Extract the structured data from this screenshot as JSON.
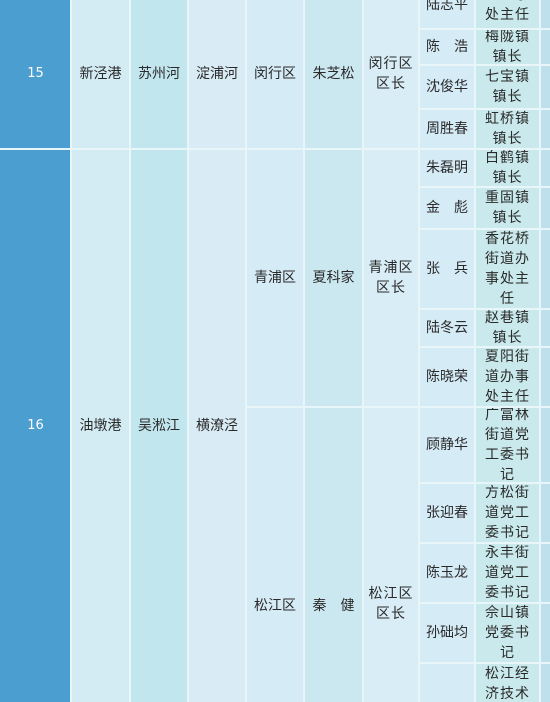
{
  "rows": [
    {
      "no": "15",
      "river1": "新泾港",
      "river2": "苏州河",
      "river3": "淀浦河",
      "district": "闵行区",
      "district_chief": "朱芝松",
      "district_title": "闵行区区长",
      "towns": [
        {
          "name": "陆志平",
          "title": "道办事处主任"
        },
        {
          "name": "陈　浩",
          "title": "梅陇镇镇长"
        },
        {
          "name": "沈俊华",
          "title": "七宝镇镇长"
        },
        {
          "name": "周胜春",
          "title": "虹桥镇镇长"
        }
      ]
    },
    {
      "no": "16",
      "river1": "油墩港",
      "river2": "吴淞江",
      "river3": "横潦泾",
      "districts": [
        {
          "district": "青浦区",
          "district_chief": "夏科家",
          "district_title": "青浦区区长",
          "towns": [
            {
              "name": "朱磊明",
              "title": "白鹤镇镇长"
            },
            {
              "name": "金　彪",
              "title": "重固镇镇长"
            },
            {
              "name": "张　兵",
              "title": "香花桥街道办事处主任"
            },
            {
              "name": "陆冬云",
              "title": "赵巷镇镇长"
            },
            {
              "name": "陈晓荣",
              "title": "夏阳街道办事处主任"
            }
          ]
        },
        {
          "district": "松江区",
          "district_chief": "秦　健",
          "district_title": "松江区区长",
          "towns": [
            {
              "name": "顾静华",
              "title": "广富林街道党工委书记"
            },
            {
              "name": "张迎春",
              "title": "方松街道党工委书记"
            },
            {
              "name": "陈玉龙",
              "title": "永丰街道党工委书记"
            },
            {
              "name": "孙础均",
              "title": "佘山镇党委书记"
            },
            {
              "name": "",
              "title": "松江经济技术"
            }
          ]
        }
      ]
    }
  ]
}
